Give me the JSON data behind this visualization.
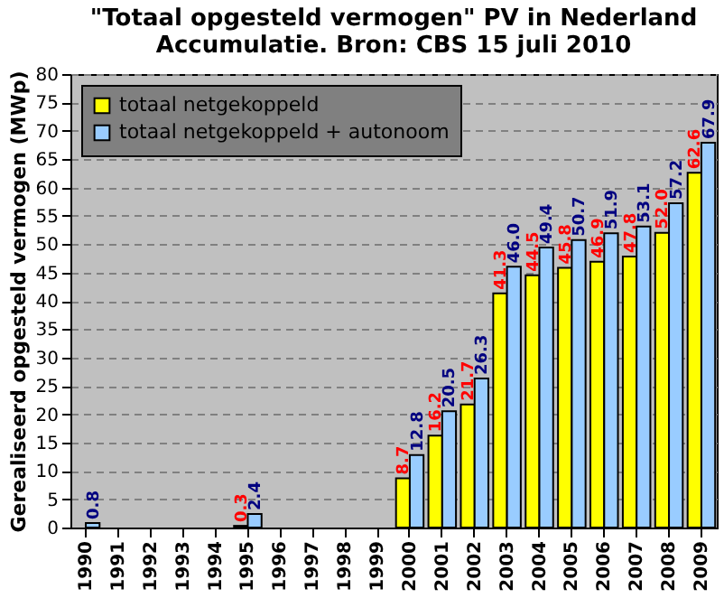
{
  "chart_data": {
    "type": "bar",
    "title": [
      "\"Totaal opgesteld vermogen\" PV in Nederland",
      "Accumulatie. Bron: CBS 15 juli 2010"
    ],
    "ylabel": "Gerealiseerd opgesteld vermogen (MWp)",
    "categories": [
      "1990",
      "1991",
      "1992",
      "1993",
      "1994",
      "1995",
      "1996",
      "1997",
      "1998",
      "1999",
      "2000",
      "2001",
      "2002",
      "2003",
      "2004",
      "2005",
      "2006",
      "2007",
      "2008",
      "2009"
    ],
    "series": [
      {
        "name": "totaal netgekoppeld",
        "color": "#ffff00",
        "values": [
          null,
          null,
          null,
          null,
          null,
          0.3,
          null,
          null,
          null,
          null,
          8.7,
          16.2,
          21.7,
          41.3,
          44.5,
          45.8,
          46.9,
          47.8,
          52.0,
          62.6
        ],
        "value_labels": [
          null,
          null,
          null,
          null,
          null,
          "0.3",
          null,
          null,
          null,
          null,
          "8.7",
          "16.2",
          "21.7",
          "41.3",
          "44.5",
          "45.8",
          "46.9",
          "47.8",
          "52.0",
          "62.6"
        ]
      },
      {
        "name": "totaal netgekoppeld + autonoom",
        "color": "#99ccff",
        "values": [
          0.8,
          null,
          null,
          null,
          null,
          2.4,
          null,
          null,
          null,
          null,
          12.8,
          20.5,
          26.3,
          46.0,
          49.4,
          50.7,
          51.9,
          53.1,
          57.2,
          67.9
        ],
        "value_labels": [
          "0.8",
          null,
          null,
          null,
          null,
          "2.4",
          null,
          null,
          null,
          null,
          "12.8",
          "20.5",
          "26.3",
          "46.0",
          "49.4",
          "50.7",
          "51.9",
          "53.1",
          "57.2",
          "67.9"
        ]
      }
    ],
    "ylim": [
      0,
      80
    ],
    "yticks": [
      0,
      5,
      10,
      15,
      20,
      25,
      30,
      35,
      40,
      45,
      50,
      55,
      60,
      65,
      70,
      75,
      80
    ],
    "grid": "y",
    "legend": "top left"
  }
}
